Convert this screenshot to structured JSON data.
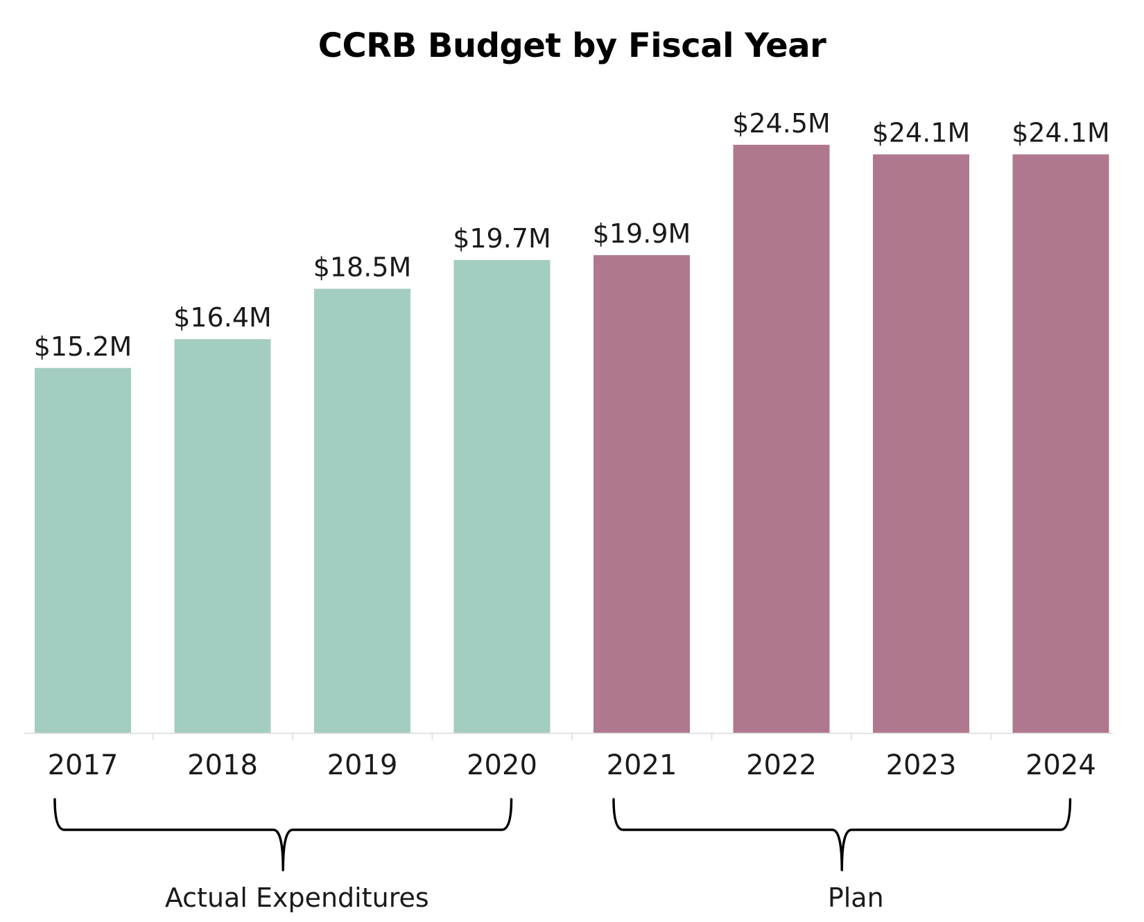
{
  "chart_data": {
    "type": "bar",
    "title": "CCRB Budget by Fiscal Year",
    "xlabel": "",
    "ylabel": "",
    "categories": [
      "2017",
      "2018",
      "2019",
      "2020",
      "2021",
      "2022",
      "2023",
      "2024"
    ],
    "values": [
      15.2,
      16.4,
      18.5,
      19.7,
      19.9,
      24.5,
      24.1,
      24.1
    ],
    "value_labels": [
      "$15.2M",
      "$16.4M",
      "$18.5M",
      "$19.7M",
      "$19.9M",
      "$24.5M",
      "$24.1M",
      "$24.1M"
    ],
    "units": "M",
    "ylim": [
      0,
      25
    ],
    "grid": false,
    "groups": [
      {
        "label": "Actual Expenditures",
        "categories": [
          "2017",
          "2018",
          "2019",
          "2020"
        ],
        "color": "#a4cdc1"
      },
      {
        "label": "Plan",
        "categories": [
          "2021",
          "2022",
          "2023",
          "2024"
        ],
        "color": "#b0788f"
      }
    ]
  }
}
